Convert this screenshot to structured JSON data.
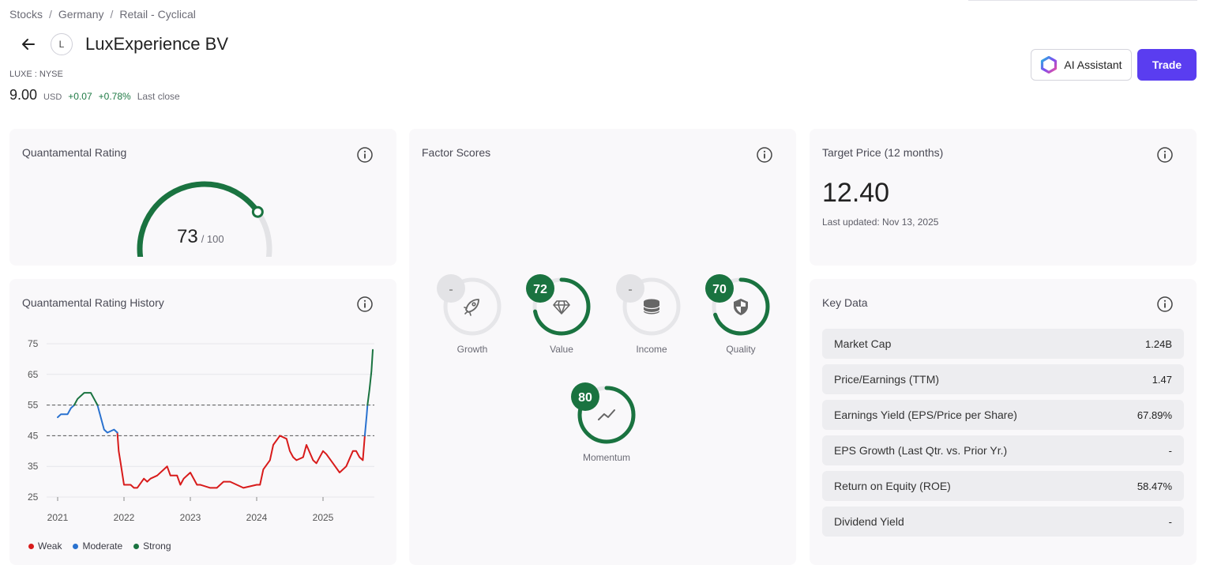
{
  "breadcrumb": {
    "items": [
      "Stocks",
      "Germany",
      "Retail - Cyclical"
    ]
  },
  "header": {
    "logo_letter": "L",
    "company_name": "LuxExperience BV",
    "ticker": "LUXE : NYSE"
  },
  "price": {
    "value": "9.00",
    "currency": "USD",
    "change": "+0.07",
    "change_pct": "+0.78%",
    "status": "Last close"
  },
  "actions": {
    "ai_label": "AI Assistant",
    "trade_label": "Trade"
  },
  "rating": {
    "title": "Quantamental Rating",
    "score": "73",
    "max": "/ 100",
    "fraction": 0.73,
    "color": "#1a7340"
  },
  "history": {
    "title": "Quantamental Rating History",
    "legend": [
      {
        "label": "Weak",
        "color": "#d81b1b"
      },
      {
        "label": "Moderate",
        "color": "#2a72cf"
      },
      {
        "label": "Strong",
        "color": "#1a7340"
      }
    ]
  },
  "chart_data": {
    "type": "line",
    "x_ticks": [
      "2021",
      "2022",
      "2023",
      "2024",
      "2025"
    ],
    "y_ticks": [
      25,
      35,
      45,
      55,
      65,
      75
    ],
    "ylim": [
      25,
      75
    ],
    "xlim": [
      2021.0,
      2025.75
    ],
    "thresholds": [
      45,
      55
    ],
    "series": [
      {
        "name": "Weak",
        "points": [
          [
            2021.9,
            46
          ],
          [
            2021.92,
            40
          ],
          [
            2021.95,
            36
          ],
          [
            2022.0,
            29
          ],
          [
            2022.1,
            29
          ],
          [
            2022.15,
            28
          ],
          [
            2022.2,
            28
          ],
          [
            2022.3,
            31
          ],
          [
            2022.35,
            30
          ],
          [
            2022.4,
            31
          ],
          [
            2022.5,
            32
          ],
          [
            2022.6,
            34
          ],
          [
            2022.65,
            35
          ],
          [
            2022.7,
            32
          ],
          [
            2022.8,
            32
          ],
          [
            2022.85,
            29
          ],
          [
            2022.9,
            31
          ],
          [
            2023.0,
            33
          ],
          [
            2023.1,
            29
          ],
          [
            2023.15,
            29
          ],
          [
            2023.3,
            28
          ],
          [
            2023.4,
            28
          ],
          [
            2023.5,
            30
          ],
          [
            2023.6,
            30
          ],
          [
            2023.7,
            29
          ],
          [
            2023.8,
            28
          ],
          [
            2024.0,
            29
          ],
          [
            2024.05,
            29
          ],
          [
            2024.1,
            34
          ],
          [
            2024.2,
            37
          ],
          [
            2024.25,
            42
          ],
          [
            2024.35,
            45
          ],
          [
            2024.45,
            44
          ],
          [
            2024.5,
            40
          ],
          [
            2024.55,
            38
          ],
          [
            2024.6,
            37
          ],
          [
            2024.7,
            38
          ],
          [
            2024.75,
            42
          ],
          [
            2024.85,
            37
          ],
          [
            2024.9,
            36
          ],
          [
            2025.0,
            40
          ],
          [
            2025.05,
            39
          ],
          [
            2025.15,
            36
          ],
          [
            2025.25,
            33
          ],
          [
            2025.35,
            35
          ],
          [
            2025.45,
            40
          ],
          [
            2025.5,
            40
          ],
          [
            2025.55,
            38
          ],
          [
            2025.6,
            37
          ],
          [
            2025.63,
            45
          ]
        ]
      },
      {
        "name": "Moderate",
        "points": [
          [
            2021.0,
            51
          ],
          [
            2021.05,
            52
          ],
          [
            2021.15,
            52
          ],
          [
            2021.2,
            54
          ],
          [
            2021.25,
            55
          ],
          [
            2021.6,
            55
          ],
          [
            2021.65,
            51
          ],
          [
            2021.7,
            47
          ],
          [
            2021.75,
            46
          ],
          [
            2021.85,
            47
          ],
          [
            2021.9,
            46
          ],
          [
            2025.63,
            45
          ],
          [
            2025.66,
            52
          ],
          [
            2025.67,
            55
          ]
        ]
      },
      {
        "name": "Strong",
        "points": [
          [
            2021.25,
            55
          ],
          [
            2021.3,
            57
          ],
          [
            2021.4,
            59
          ],
          [
            2021.5,
            59
          ],
          [
            2021.55,
            57
          ],
          [
            2021.6,
            55
          ],
          [
            2025.67,
            55
          ],
          [
            2025.7,
            60
          ],
          [
            2025.73,
            66
          ],
          [
            2025.75,
            73
          ]
        ]
      }
    ]
  },
  "factors": {
    "title": "Factor Scores",
    "items": [
      {
        "key": "growth",
        "label": "Growth",
        "score": "-",
        "fraction": 0,
        "icon": "rocket-icon"
      },
      {
        "key": "value",
        "label": "Value",
        "score": "72",
        "fraction": 0.72,
        "icon": "diamond-icon"
      },
      {
        "key": "income",
        "label": "Income",
        "score": "-",
        "fraction": 0,
        "icon": "coins-icon"
      },
      {
        "key": "quality",
        "label": "Quality",
        "score": "70",
        "fraction": 0.7,
        "icon": "shield-icon"
      },
      {
        "key": "momentum",
        "label": "Momentum",
        "score": "80",
        "fraction": 0.8,
        "icon": "trend-icon"
      }
    ]
  },
  "target": {
    "title": "Target Price (12 months)",
    "value": "12.40",
    "updated": "Last updated: Nov 13, 2025"
  },
  "key_data": {
    "title": "Key Data",
    "rows": [
      {
        "label": "Market Cap",
        "value": "1.24B"
      },
      {
        "label": "Price/Earnings (TTM)",
        "value": "1.47"
      },
      {
        "label": "Earnings Yield (EPS/Price per Share)",
        "value": "67.89%"
      },
      {
        "label": "EPS Growth (Last Qtr. vs. Prior Yr.)",
        "value": "-"
      },
      {
        "label": "Return on Equity (ROE)",
        "value": "58.47%"
      },
      {
        "label": "Dividend Yield",
        "value": "-"
      }
    ]
  }
}
